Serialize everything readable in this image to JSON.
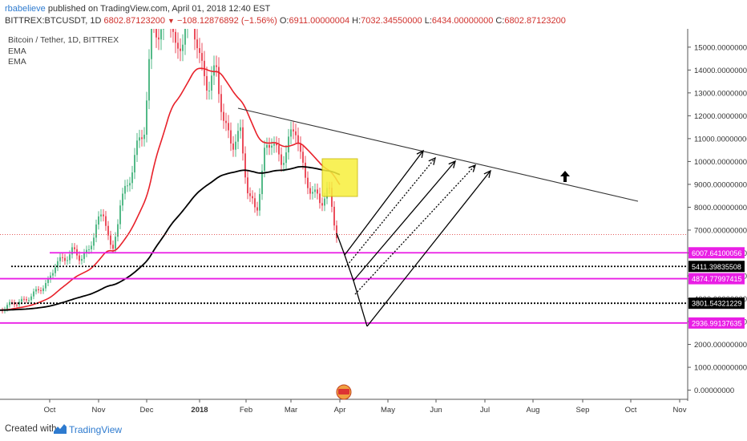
{
  "header": {
    "author": "rbabelieve",
    "published": "published on TradingView.com, April 01, 2018 12:40 EST",
    "symbol": "BITTREX:BTCUSDT, 1D",
    "price": "6802.87123200",
    "change": "−108.12876892 (−1.56%)",
    "ohlc": {
      "o_label": "O:",
      "o": "6911.00000004",
      "h_label": "H:",
      "h": "7032.34550000",
      "l_label": "L:",
      "l": "6434.00000000",
      "c_label": "C:",
      "c": "6802.87123200"
    }
  },
  "legend": {
    "title": "Bitcoin / Tether, 1D, BITTREX",
    "ema1": "EMA",
    "ema2": "EMA"
  },
  "footer": {
    "created": "Created with",
    "brand": "TradingView"
  },
  "colors": {
    "up": "#53b987",
    "down": "#eb4d5c",
    "ema_fast": "#e8212a",
    "ema_slow": "#000000",
    "level": "#e91ee5",
    "box": "#f7ef3c",
    "price_line": "#e04848",
    "axis": "#555555"
  },
  "chart_data": {
    "type": "candlestick",
    "title": "Bitcoin / Tether, 1D, BITTREX",
    "x_ticks": [
      "Oct",
      "Nov",
      "Dec",
      "2018",
      "Feb",
      "Mar",
      "Apr",
      "May",
      "Jun",
      "Jul",
      "Aug",
      "Sep",
      "Oct",
      "Nov"
    ],
    "ylim": [
      -400,
      15800
    ],
    "y_ticks": [
      "0.00000000",
      "1000.00000000",
      "2000.00000000",
      "3000.00000000",
      "4000.00000000",
      "5000.00000000",
      "6000.00000000",
      "7000.00000000",
      "8000.00000000",
      "9000.00000000",
      "10000.00000000",
      "11000.00000000",
      "12000.00000000",
      "13000.00000000",
      "14000.00000000",
      "15000.00000000"
    ],
    "levels": [
      {
        "value": "6007.64100056",
        "kind": "magenta"
      },
      {
        "value": "5411.39835508",
        "kind": "dotted"
      },
      {
        "value": "4874.77997415",
        "kind": "magenta"
      },
      {
        "value": "3801.54321229",
        "kind": "dotted"
      },
      {
        "value": "2936.99137635",
        "kind": "magenta"
      }
    ],
    "last_price": 6802.87,
    "annotations": [
      "descending-trendline",
      "rally-arrows",
      "up-arrow",
      "highlight-box"
    ]
  }
}
